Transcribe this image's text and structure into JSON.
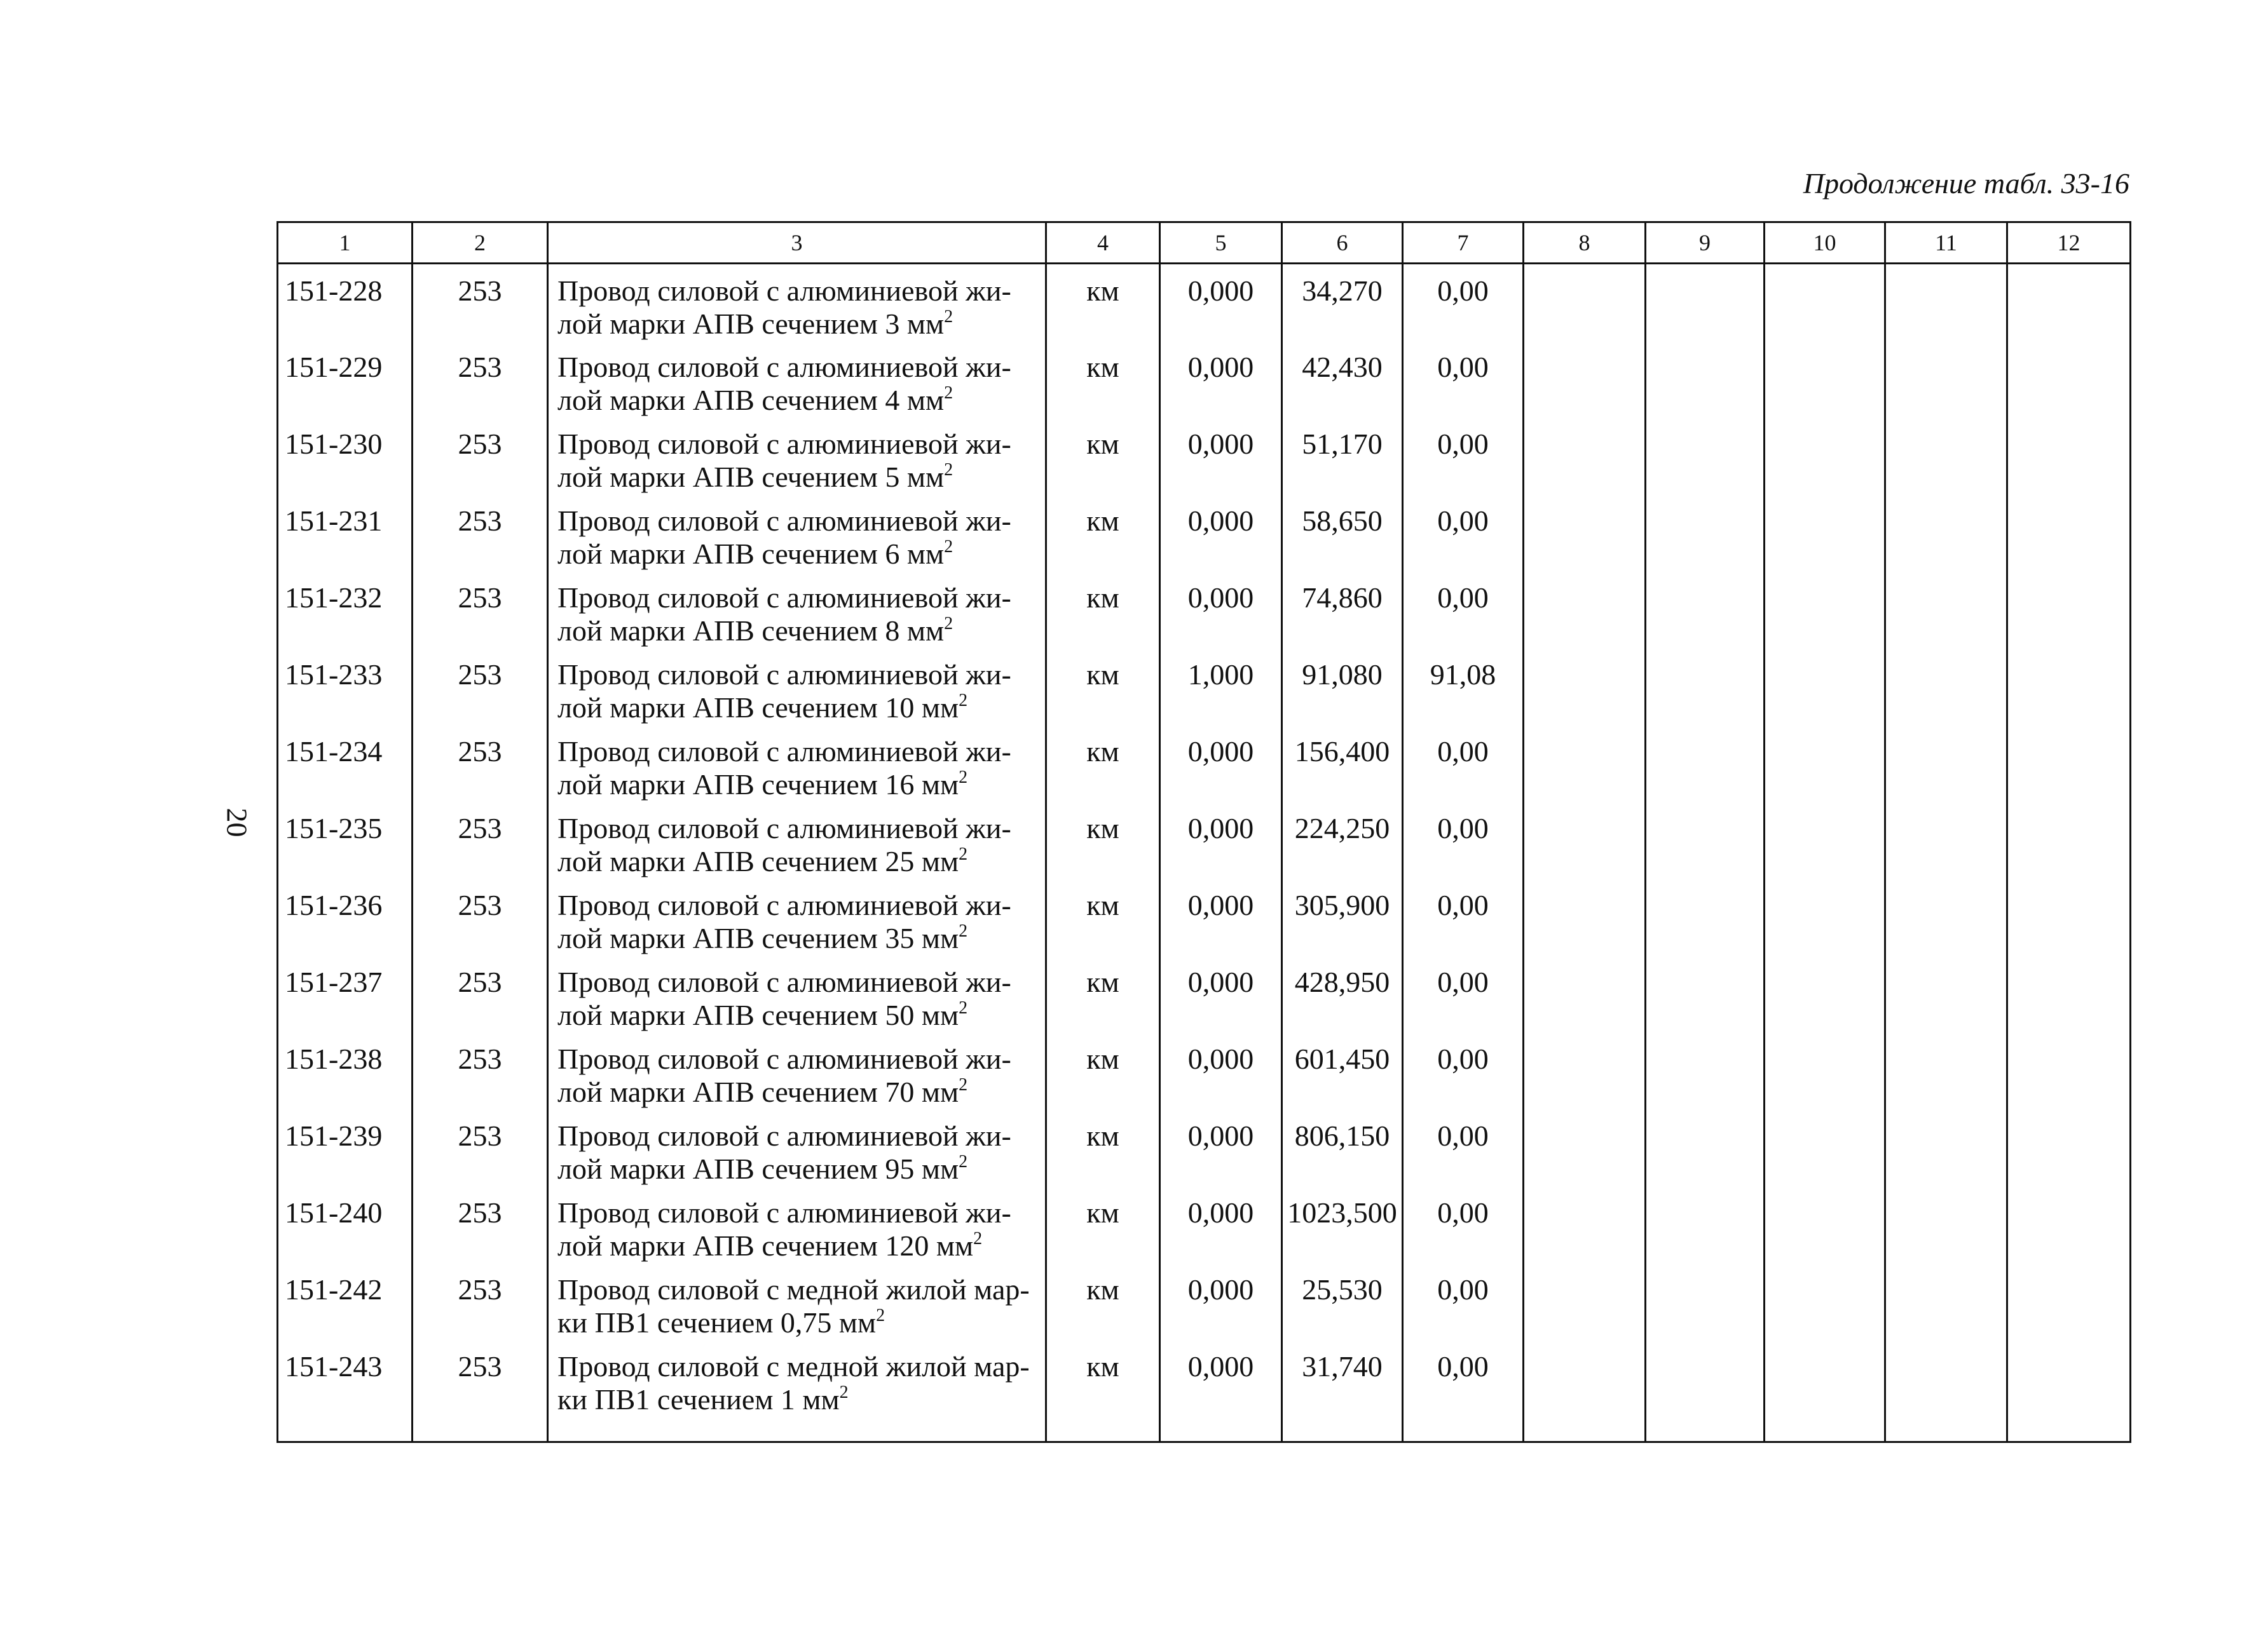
{
  "header": {
    "title": "Продолжение табл. 33-16",
    "page_number": "20"
  },
  "table": {
    "columns": [
      "1",
      "2",
      "3",
      "4",
      "5",
      "6",
      "7",
      "8",
      "9",
      "10",
      "11",
      "12"
    ],
    "rows": [
      {
        "code": "151-228",
        "group": "253",
        "desc": [
          "Провод силовой с алюминиевой жи-",
          "лой марки АПВ сечением 3 мм"
        ],
        "sup": "2",
        "unit": "км",
        "c5": "0,000",
        "c6": "34,270",
        "c7": "0,00"
      },
      {
        "code": "151-229",
        "group": "253",
        "desc": [
          "Провод силовой с алюминиевой жи-",
          "лой марки АПВ сечением 4 мм"
        ],
        "sup": "2",
        "unit": "км",
        "c5": "0,000",
        "c6": "42,430",
        "c7": "0,00"
      },
      {
        "code": "151-230",
        "group": "253",
        "desc": [
          "Провод силовой с алюминиевой жи-",
          "лой марки АПВ сечением 5 мм"
        ],
        "sup": "2",
        "unit": "км",
        "c5": "0,000",
        "c6": "51,170",
        "c7": "0,00"
      },
      {
        "code": "151-231",
        "group": "253",
        "desc": [
          "Провод силовой с алюминиевой жи-",
          "лой марки АПВ сечением 6 мм"
        ],
        "sup": "2",
        "unit": "км",
        "c5": "0,000",
        "c6": "58,650",
        "c7": "0,00"
      },
      {
        "code": "151-232",
        "group": "253",
        "desc": [
          "Провод силовой с алюминиевой жи-",
          "лой марки АПВ сечением 8 мм"
        ],
        "sup": "2",
        "unit": "км",
        "c5": "0,000",
        "c6": "74,860",
        "c7": "0,00"
      },
      {
        "code": "151-233",
        "group": "253",
        "desc": [
          "Провод силовой с алюминиевой жи-",
          "лой марки АПВ сечением 10 мм"
        ],
        "sup": "2",
        "unit": "км",
        "c5": "1,000",
        "c6": "91,080",
        "c7": "91,08"
      },
      {
        "code": "151-234",
        "group": "253",
        "desc": [
          "Провод силовой с алюминиевой жи-",
          "лой марки АПВ сечением 16 мм"
        ],
        "sup": "2",
        "unit": "км",
        "c5": "0,000",
        "c6": "156,400",
        "c7": "0,00"
      },
      {
        "code": "151-235",
        "group": "253",
        "desc": [
          "Провод силовой с алюминиевой жи-",
          "лой марки АПВ сечением 25 мм"
        ],
        "sup": "2",
        "unit": "км",
        "c5": "0,000",
        "c6": "224,250",
        "c7": "0,00"
      },
      {
        "code": "151-236",
        "group": "253",
        "desc": [
          "Провод силовой с алюминиевой жи-",
          "лой марки АПВ сечением 35 мм"
        ],
        "sup": "2",
        "unit": "км",
        "c5": "0,000",
        "c6": "305,900",
        "c7": "0,00"
      },
      {
        "code": "151-237",
        "group": "253",
        "desc": [
          "Провод силовой с алюминиевой жи-",
          "лой марки АПВ сечением 50 мм"
        ],
        "sup": "2",
        "unit": "км",
        "c5": "0,000",
        "c6": "428,950",
        "c7": "0,00"
      },
      {
        "code": "151-238",
        "group": "253",
        "desc": [
          "Провод силовой с алюминиевой жи-",
          "лой марки АПВ сечением 70 мм"
        ],
        "sup": "2",
        "unit": "км",
        "c5": "0,000",
        "c6": "601,450",
        "c7": "0,00"
      },
      {
        "code": "151-239",
        "group": "253",
        "desc": [
          "Провод силовой с алюминиевой жи-",
          "лой марки АПВ сечением 95 мм"
        ],
        "sup": "2",
        "unit": "км",
        "c5": "0,000",
        "c6": "806,150",
        "c7": "0,00"
      },
      {
        "code": "151-240",
        "group": "253",
        "desc": [
          "Провод силовой с алюминиевой жи-",
          "лой марки АПВ сечением 120 мм"
        ],
        "sup": "2",
        "unit": "км",
        "c5": "0,000",
        "c6": "1023,500",
        "c7": "0,00"
      },
      {
        "code": "151-242",
        "group": "253",
        "desc": [
          "Провод силовой с медной жилой мар-",
          "ки ПВ1 сечением 0,75 мм"
        ],
        "sup": "2",
        "unit": "км",
        "c5": "0,000",
        "c6": "25,530",
        "c7": "0,00"
      },
      {
        "code": "151-243",
        "group": "253",
        "desc": [
          "Провод силовой с медной жилой мар-",
          "ки ПВ1 сечением 1 мм"
        ],
        "sup": "2",
        "unit": "км",
        "c5": "0,000",
        "c6": "31,740",
        "c7": "0,00"
      }
    ]
  }
}
